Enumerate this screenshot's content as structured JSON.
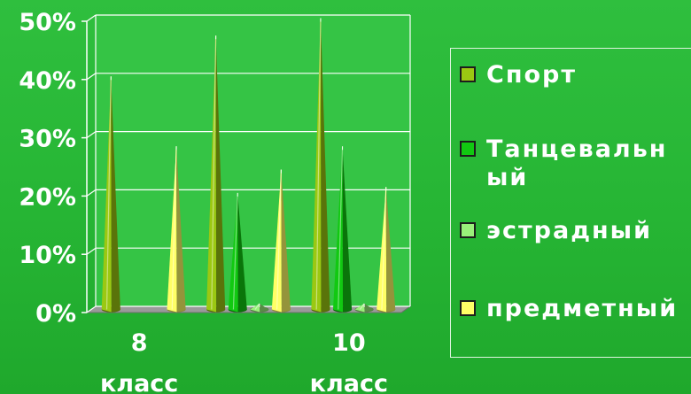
{
  "chart_data": {
    "type": "bar",
    "style": "3d-cone",
    "categories": [
      "8 класс",
      "",
      "10 класс"
    ],
    "series": [
      {
        "name": "Спорт",
        "values": [
          40,
          47,
          50
        ],
        "color": "#9bc812"
      },
      {
        "name": "Танцевальный",
        "values": [
          0,
          20,
          28
        ],
        "color": "#11c911"
      },
      {
        "name": "эстрадный",
        "values": [
          0,
          1,
          1
        ],
        "color": "#99f07a"
      },
      {
        "name": "предметный",
        "values": [
          28,
          24,
          21
        ],
        "color": "#ffff66"
      }
    ],
    "y_ticks": [
      "0%",
      "10%",
      "20%",
      "30%",
      "40%",
      "50%"
    ],
    "ylim": [
      0,
      50
    ],
    "grid": true,
    "legend_position": "right",
    "title": "",
    "xlabel": "",
    "ylabel": ""
  },
  "legend": {
    "items": [
      {
        "label": "Спорт",
        "color": "#9bc812"
      },
      {
        "label": "Танцевальный",
        "color": "#11c911"
      },
      {
        "label": "эстрадный",
        "color": "#99f07a"
      },
      {
        "label": "предметный",
        "color": "#ffff66"
      }
    ]
  }
}
